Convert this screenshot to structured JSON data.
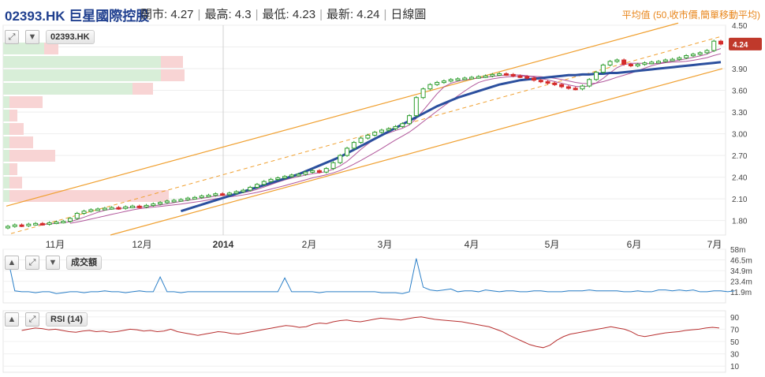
{
  "header": {
    "symbol": "02393.HK 巨星國際控股",
    "open": "開市: 4.27",
    "high": "最高: 4.3",
    "low": "最低: 4.23",
    "last": "最新: 4.24",
    "period": "日線圖",
    "ma_label": "平均值 (50,收市價,簡單移動平均)"
  },
  "panels": {
    "price_tag": "02393.HK",
    "volume_tag": "成交額",
    "rsi_tag": "RSI (14)",
    "last_price_badge": "4.24"
  },
  "colors": {
    "up": "#2e9e2e",
    "down": "#d42a2a",
    "ma50": "#2b4f9e",
    "ma_short": "#a33a8a",
    "channel": "#f0a030",
    "volume_line": "#2a7fc8",
    "rsi_line": "#b83030",
    "vp_buy": "#d8eed8",
    "vp_sell": "#f8d4d4"
  },
  "icons": [
    "expand-icon",
    "arrow-down-icon",
    "arrow-up-icon"
  ],
  "chart_data": [
    {
      "type": "line",
      "name": "price",
      "x_ticks": [
        "11月",
        "12月",
        "2014",
        "2月",
        "3月",
        "4月",
        "5月",
        "6月",
        "7月"
      ],
      "y_ticks": [
        1.8,
        2.1,
        2.4,
        2.7,
        3.0,
        3.3,
        3.6,
        3.9,
        4.2,
        4.5
      ],
      "ylim": [
        1.6,
        4.5
      ],
      "close": [
        1.72,
        1.74,
        1.73,
        1.75,
        1.76,
        1.75,
        1.77,
        1.78,
        1.79,
        1.83,
        1.9,
        1.93,
        1.95,
        1.96,
        1.97,
        1.98,
        1.97,
        1.99,
        2.0,
        1.99,
        2.01,
        2.03,
        2.05,
        2.07,
        2.08,
        2.09,
        2.11,
        2.12,
        2.14,
        2.15,
        2.17,
        2.16,
        2.18,
        2.2,
        2.22,
        2.26,
        2.3,
        2.34,
        2.37,
        2.39,
        2.41,
        2.43,
        2.44,
        2.47,
        2.49,
        2.47,
        2.52,
        2.6,
        2.7,
        2.8,
        2.88,
        2.94,
        2.98,
        3.02,
        3.05,
        3.07,
        3.1,
        3.14,
        3.25,
        3.5,
        3.62,
        3.68,
        3.71,
        3.73,
        3.75,
        3.76,
        3.77,
        3.78,
        3.79,
        3.8,
        3.82,
        3.83,
        3.82,
        3.8,
        3.79,
        3.77,
        3.74,
        3.72,
        3.7,
        3.68,
        3.65,
        3.63,
        3.62,
        3.66,
        3.75,
        3.85,
        3.95,
        4.0,
        4.02,
        3.96,
        3.94,
        3.96,
        3.98,
        3.99,
        4.0,
        4.02,
        4.03,
        4.05,
        4.08,
        4.1,
        4.12,
        4.15,
        4.28,
        4.24
      ],
      "ma50": [
        null,
        null,
        null,
        null,
        null,
        null,
        null,
        null,
        null,
        null,
        null,
        null,
        null,
        null,
        null,
        null,
        null,
        null,
        null,
        null,
        null,
        null,
        null,
        null,
        null,
        1.93,
        1.96,
        1.99,
        2.02,
        2.05,
        2.08,
        2.11,
        2.14,
        2.17,
        2.2,
        2.23,
        2.26,
        2.29,
        2.32,
        2.35,
        2.38,
        2.41,
        2.44,
        2.48,
        2.52,
        2.56,
        2.6,
        2.64,
        2.68,
        2.73,
        2.78,
        2.83,
        2.88,
        2.93,
        2.98,
        3.03,
        3.08,
        3.13,
        3.18,
        3.23,
        3.28,
        3.33,
        3.38,
        3.42,
        3.46,
        3.5,
        3.53,
        3.56,
        3.59,
        3.62,
        3.65,
        3.68,
        3.7,
        3.72,
        3.74,
        3.75,
        3.76,
        3.77,
        3.78,
        3.79,
        3.8,
        3.81,
        3.81,
        3.82,
        3.82,
        3.83,
        3.83,
        3.84,
        3.84,
        3.85,
        3.86,
        3.87,
        3.88,
        3.89,
        3.9,
        3.91,
        3.92,
        3.93,
        3.94,
        3.95,
        3.96,
        3.97,
        3.98,
        3.99
      ]
    },
    {
      "type": "line",
      "name": "turnover",
      "y_ticks": [
        "58m",
        "46.5m",
        "34.9m",
        "23.4m",
        "11.9m"
      ],
      "ylim": [
        0,
        58
      ],
      "values": [
        48,
        13,
        12,
        12,
        11,
        12,
        12,
        10,
        11,
        12,
        12,
        11,
        12,
        12,
        13,
        12,
        12,
        11,
        12,
        13,
        12,
        12,
        28,
        12,
        12,
        11,
        12,
        12,
        12,
        12,
        12,
        12,
        12,
        12,
        12,
        12,
        12,
        12,
        12,
        12,
        27,
        12,
        12,
        12,
        12,
        11,
        12,
        12,
        12,
        12,
        12,
        12,
        12,
        12,
        11,
        11,
        11,
        10,
        12,
        48,
        17,
        14,
        13,
        14,
        15,
        12,
        13,
        13,
        12,
        14,
        13,
        12,
        13,
        13,
        12,
        12,
        13,
        13,
        12,
        12,
        12,
        13,
        13,
        13,
        14,
        13,
        13,
        13,
        13,
        12,
        12,
        13,
        12,
        12,
        14,
        14,
        13,
        14,
        13,
        14,
        12,
        12,
        13,
        13,
        12,
        13
      ]
    },
    {
      "type": "line",
      "name": "RSI (14)",
      "y_ticks": [
        90,
        70,
        50,
        30,
        10
      ],
      "ylim": [
        0,
        100
      ],
      "values": [
        68,
        70,
        72,
        71,
        69,
        70,
        68,
        66,
        65,
        67,
        68,
        66,
        67,
        65,
        66,
        68,
        70,
        69,
        67,
        68,
        66,
        67,
        70,
        66,
        64,
        62,
        60,
        62,
        64,
        66,
        65,
        63,
        62,
        64,
        66,
        68,
        70,
        72,
        74,
        76,
        75,
        73,
        74,
        78,
        80,
        79,
        82,
        84,
        85,
        83,
        82,
        84,
        86,
        88,
        87,
        86,
        85,
        87,
        89,
        90,
        88,
        86,
        85,
        84,
        83,
        82,
        80,
        78,
        76,
        74,
        70,
        66,
        60,
        55,
        50,
        45,
        42,
        40,
        44,
        52,
        58,
        62,
        64,
        66,
        68,
        70,
        72,
        74,
        72,
        70,
        66,
        60,
        58,
        60,
        62,
        64,
        65,
        66,
        68,
        69,
        70,
        72,
        73,
        72
      ]
    }
  ]
}
